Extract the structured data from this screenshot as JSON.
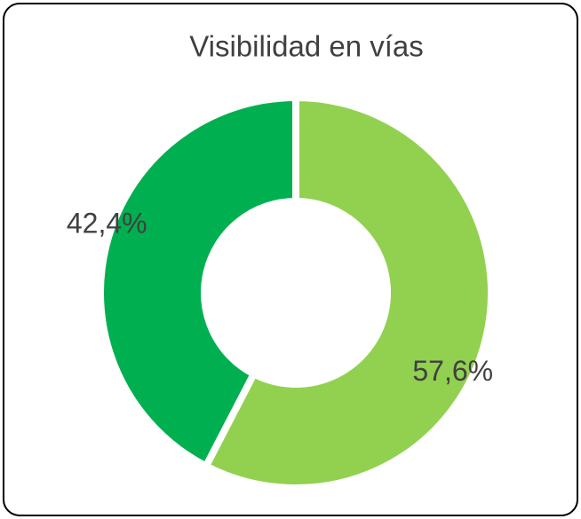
{
  "chart_data": {
    "type": "donut",
    "title": "Visibilidad en vías",
    "values": [
      57.6,
      42.4
    ],
    "value_labels": [
      "57,6%",
      "42,4%"
    ],
    "colors": [
      "#92d050",
      "#00b050"
    ]
  }
}
